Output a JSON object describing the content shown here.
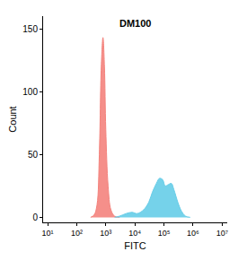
{
  "chart_data": {
    "type": "area",
    "title": "DM100",
    "x_label": "FITC",
    "y_label": "Count",
    "log": "x",
    "grid": false,
    "xlim": [
      7,
      15000000
    ],
    "xticks": [
      {
        "value": 10,
        "label": "10¹"
      },
      {
        "value": 100,
        "label": "10²"
      },
      {
        "value": 1000,
        "label": "10³"
      },
      {
        "value": 10000,
        "label": "10⁴"
      },
      {
        "value": 100000,
        "label": "10⁵"
      },
      {
        "value": 1000000,
        "label": "10⁶"
      },
      {
        "value": 10000000,
        "label": "10⁷"
      }
    ],
    "ylim": [
      -4,
      160
    ],
    "yticks": [
      0,
      50,
      100,
      150
    ],
    "series": [
      {
        "color": "#f4837d",
        "x": [
          300,
          400,
          500,
          600,
          700,
          800,
          900,
          1000,
          1200,
          1500,
          2000,
          3000
        ],
        "values": [
          0,
          2,
          10,
          50,
          120,
          143,
          120,
          70,
          25,
          6,
          1,
          0
        ]
      },
      {
        "color": "#66cde8",
        "x": [
          2000,
          3000,
          5000,
          8000,
          12000,
          20000,
          30000,
          40000,
          55000,
          70000,
          90000,
          110000,
          140000,
          180000,
          220000,
          300000,
          400000,
          550000,
          800000
        ],
        "values": [
          0,
          1,
          3,
          4,
          3,
          6,
          12,
          20,
          27,
          31,
          30,
          25,
          26,
          27,
          22,
          12,
          5,
          1,
          0
        ]
      }
    ]
  }
}
